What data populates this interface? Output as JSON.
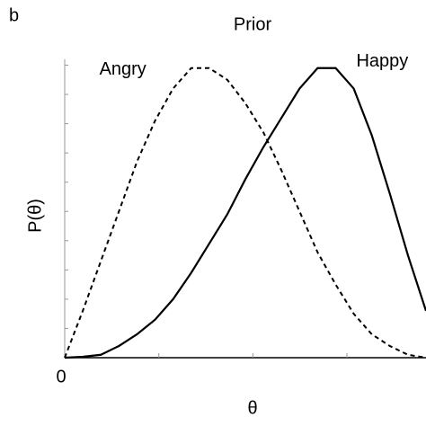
{
  "chart_data": {
    "type": "line",
    "title": "Prior",
    "panel_label": "b",
    "xlabel": "θ",
    "ylabel": "P(θ)",
    "x": [
      0,
      0.048,
      0.096,
      0.144,
      0.192,
      0.24,
      0.288,
      0.336,
      0.384,
      0.432,
      0.48,
      0.528,
      0.576,
      0.624,
      0.672,
      0.72,
      0.768,
      0.816,
      0.864,
      0.912,
      0.96
    ],
    "series": [
      {
        "name": "Angry",
        "color": "#000000",
        "style": "dashed",
        "values": [
          0,
          0.16,
          0.33,
          0.5,
          0.67,
          0.81,
          0.92,
          0.99,
          0.99,
          0.95,
          0.87,
          0.77,
          0.64,
          0.5,
          0.36,
          0.25,
          0.15,
          0.08,
          0.04,
          0.01,
          0
        ]
      },
      {
        "name": "Happy",
        "color": "#000000",
        "style": "solid",
        "values": [
          0,
          0.003,
          0.01,
          0.04,
          0.08,
          0.13,
          0.2,
          0.29,
          0.39,
          0.49,
          0.61,
          0.72,
          0.82,
          0.92,
          0.99,
          0.99,
          0.92,
          0.76,
          0.56,
          0.35,
          0.16
        ]
      }
    ],
    "xlim": [
      0,
      0.96
    ],
    "ylim": [
      0,
      1.02
    ],
    "xticks": [
      0,
      {
        "value": 0.25,
        "label": null
      },
      {
        "value": 0.5,
        "label": null
      },
      {
        "value": 0.75,
        "label": null
      }
    ],
    "yticks": [
      {
        "value": 0.1,
        "label": null
      },
      {
        "value": 0.2,
        "label": null
      },
      {
        "value": 0.3,
        "label": null
      },
      {
        "value": 0.4,
        "label": null
      },
      {
        "value": 0.5,
        "label": null
      },
      {
        "value": 0.6,
        "label": null
      },
      {
        "value": 0.7,
        "label": null
      },
      {
        "value": 0.8,
        "label": null
      },
      {
        "value": 0.9,
        "label": null
      },
      {
        "value": 1.0,
        "label": null
      }
    ],
    "grid": false
  }
}
